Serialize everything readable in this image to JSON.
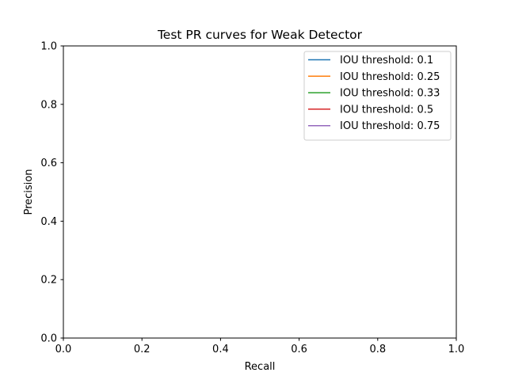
{
  "chart_data": {
    "type": "line",
    "title": "Test PR curves for Weak Detector",
    "xlabel": "Recall",
    "ylabel": "Precision",
    "xlim": [
      0.0,
      1.0
    ],
    "ylim": [
      0.0,
      1.0
    ],
    "xticks": [
      "0.0",
      "0.2",
      "0.4",
      "0.6",
      "0.8",
      "1.0"
    ],
    "yticks": [
      "0.0",
      "0.2",
      "0.4",
      "0.6",
      "0.8",
      "1.0"
    ],
    "grid": false,
    "legend_position": "top-right",
    "series": [
      {
        "name": "IOU threshold: 0.1",
        "color": "#1f77b4",
        "x": [],
        "y": []
      },
      {
        "name": "IOU threshold: 0.25",
        "color": "#ff7f0e",
        "x": [],
        "y": []
      },
      {
        "name": "IOU threshold: 0.33",
        "color": "#2ca02c",
        "x": [],
        "y": []
      },
      {
        "name": "IOU threshold: 0.5",
        "color": "#d62728",
        "x": [],
        "y": []
      },
      {
        "name": "IOU threshold: 0.75",
        "color": "#9467bd",
        "x": [],
        "y": []
      }
    ]
  }
}
